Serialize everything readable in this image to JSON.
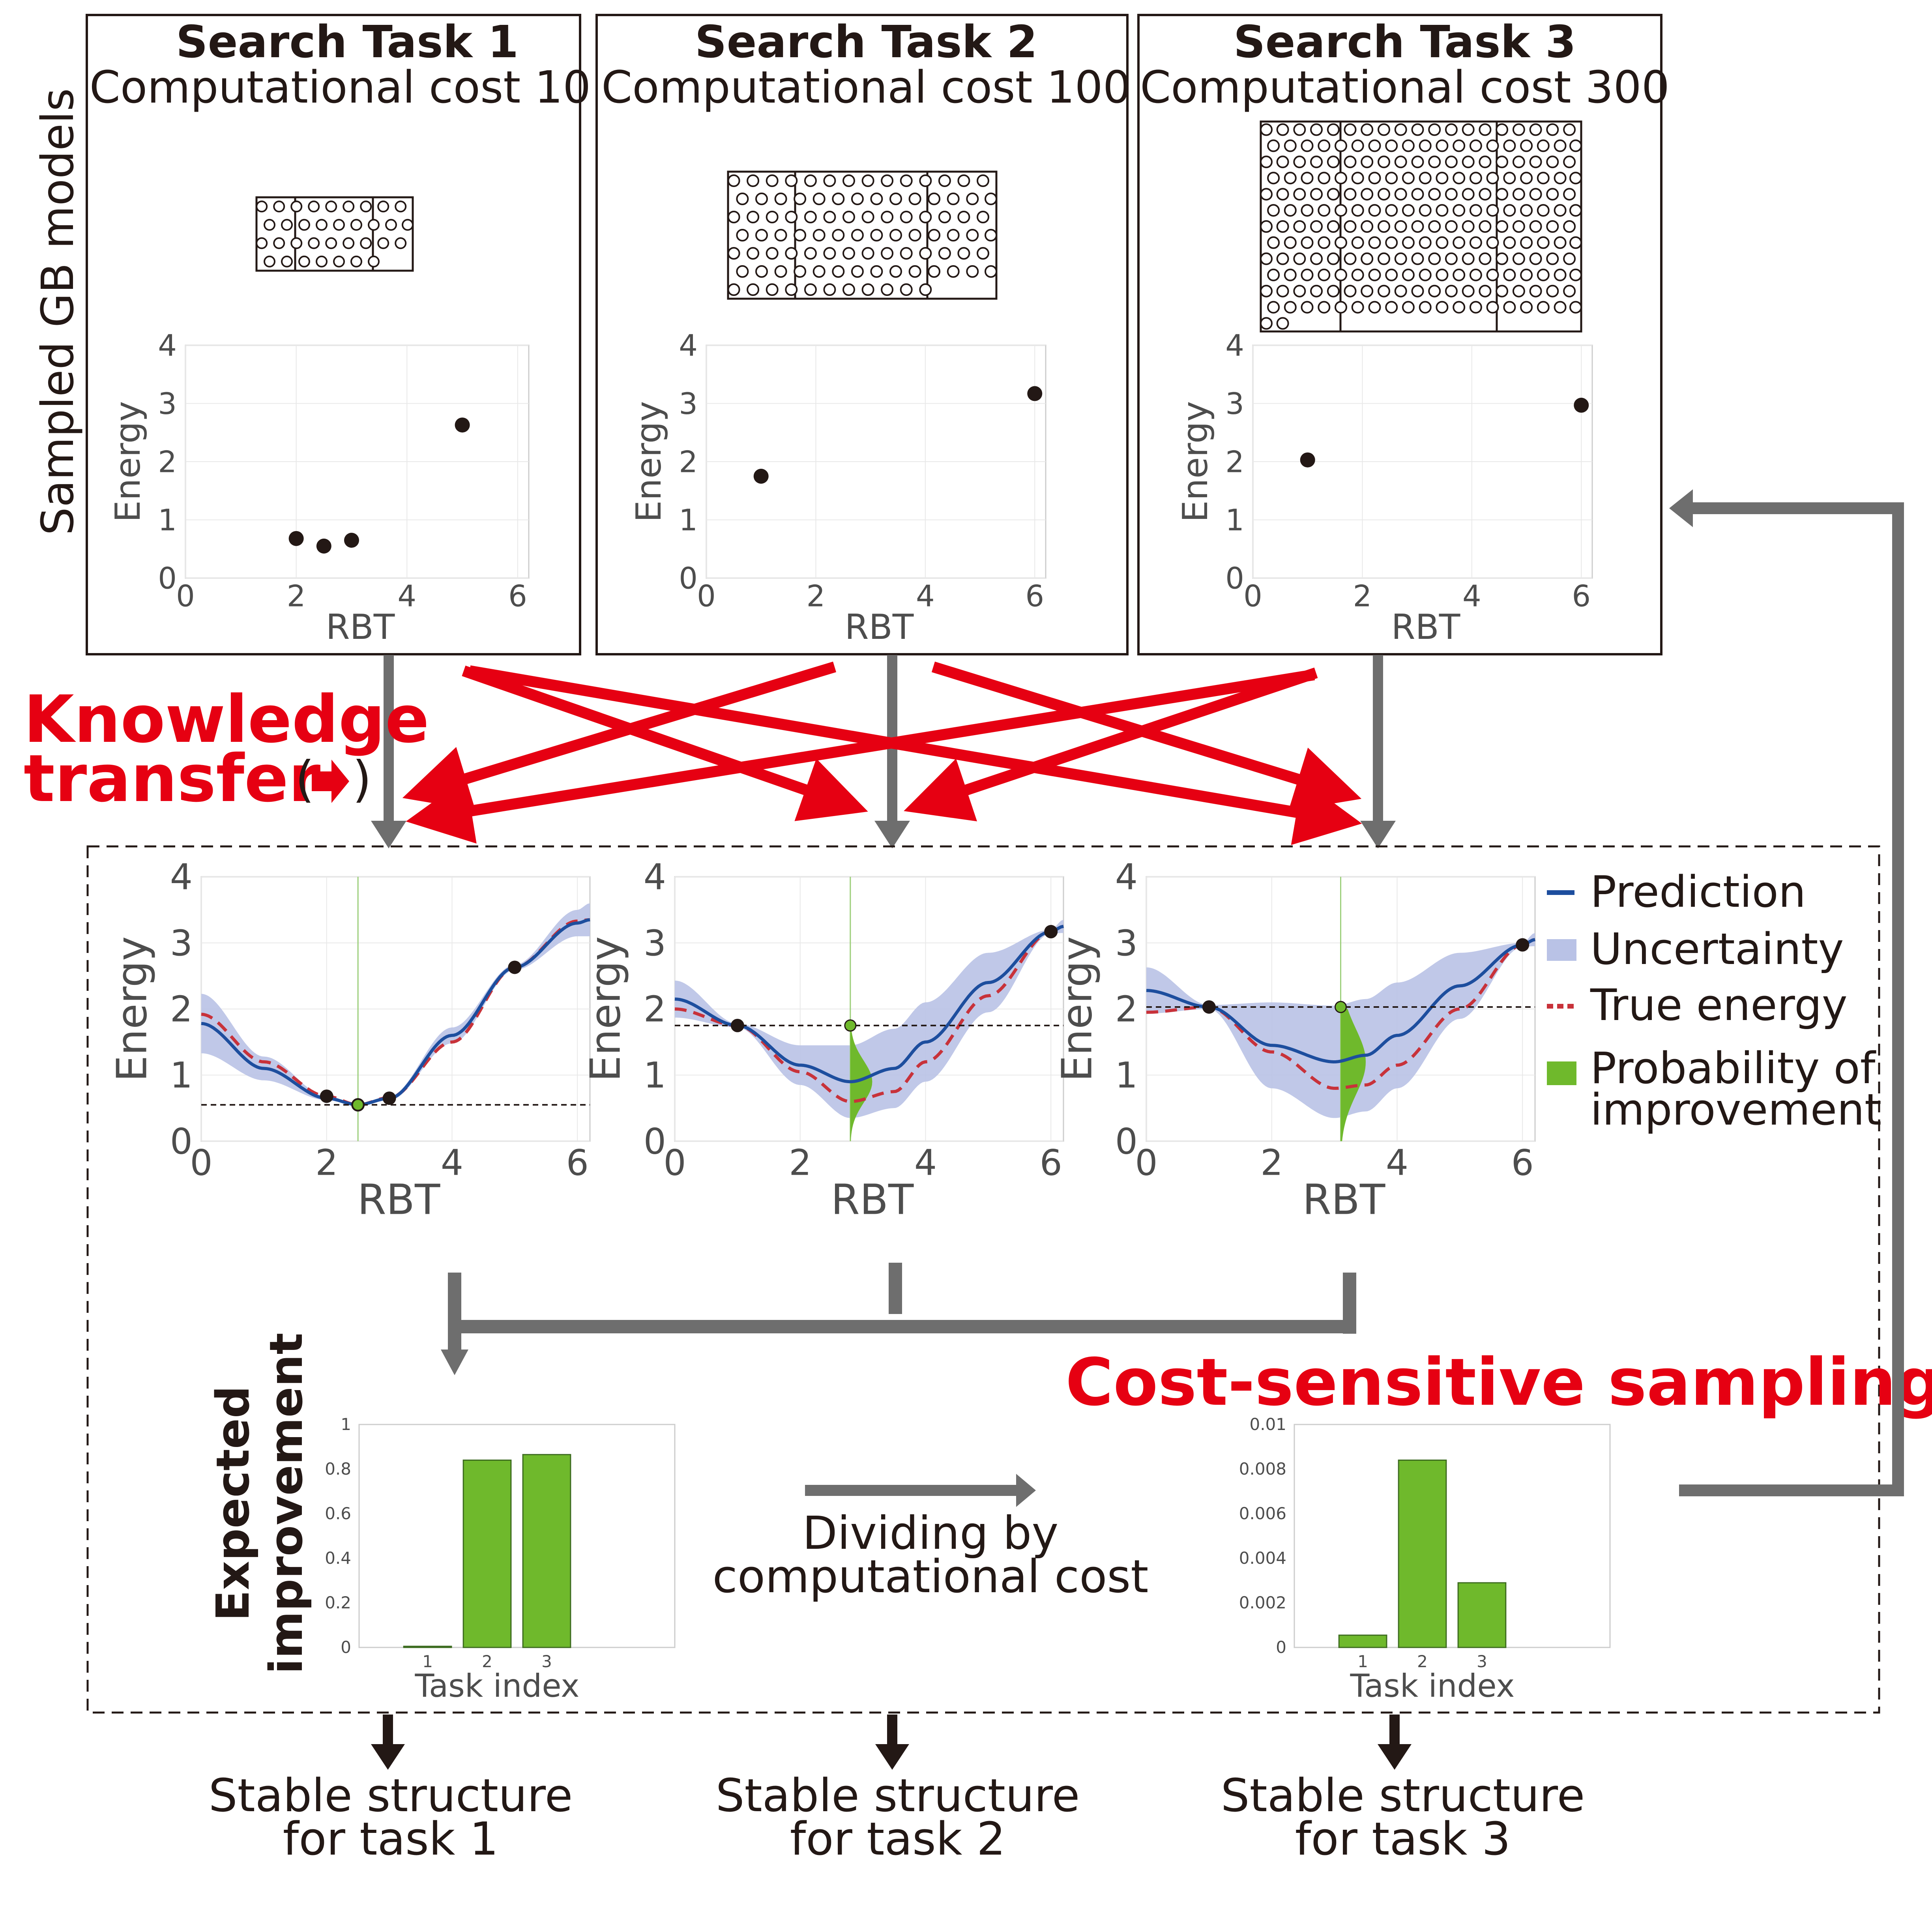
{
  "side_label": "Sampled GB models",
  "tasks": [
    {
      "title": "Search Task 1",
      "cost_label": "Computational cost 10"
    },
    {
      "title": "Search Task 2",
      "cost_label": "Computational cost 100"
    },
    {
      "title": "Search Task 3",
      "cost_label": "Computational cost 300"
    }
  ],
  "knowledge_transfer": {
    "line1": "Knowledge",
    "line2": "transfer",
    "paren_open": "(",
    "paren_close": ")"
  },
  "legend": {
    "prediction": "Prediction",
    "uncertainty": "Uncertainty",
    "true_energy": "True energy",
    "poi_line1": "Probability of",
    "poi_line2": "improvement"
  },
  "cost_sensitive_label": "Cost-sensitive sampling",
  "dividing": {
    "line1": "Dividing by",
    "line2": "computational cost"
  },
  "ei_ylabel": {
    "line1": "Expected",
    "line2": "improvement"
  },
  "outputs": [
    {
      "line1": "Stable structure",
      "line2": "for task 1"
    },
    {
      "line1": "Stable structure",
      "line2": "for task 2"
    },
    {
      "line1": "Stable structure",
      "line2": "for task 3"
    }
  ],
  "colors": {
    "red": "#e60012",
    "green": "#6fb92c",
    "prediction": "#1d4e9e",
    "uncertainty": "#b9c2e6",
    "true_energy": "#c8323a",
    "arrow_gray": "#6e6e6e",
    "dot": "#231815"
  },
  "chart_data": [
    {
      "type": "scatter",
      "xlabel": "RBT",
      "ylabel": "Energy",
      "xlim": [
        0,
        6.2
      ],
      "ylim": [
        0,
        4
      ],
      "xticks": [
        "0",
        "2",
        "4",
        "6"
      ],
      "yticks": [
        "0",
        "1",
        "2",
        "3",
        "4"
      ],
      "points": [
        [
          2.0,
          0.68
        ],
        [
          2.5,
          0.55
        ],
        [
          3.0,
          0.65
        ],
        [
          5.0,
          2.63
        ]
      ]
    },
    {
      "type": "scatter",
      "xlabel": "RBT",
      "ylabel": "Energy",
      "xlim": [
        0,
        6.2
      ],
      "ylim": [
        0,
        4
      ],
      "xticks": [
        "0",
        "2",
        "4",
        "6"
      ],
      "yticks": [
        "0",
        "1",
        "2",
        "3",
        "4"
      ],
      "points": [
        [
          1.0,
          1.75
        ],
        [
          6.0,
          3.17
        ]
      ]
    },
    {
      "type": "scatter",
      "xlabel": "RBT",
      "ylabel": "Energy",
      "xlim": [
        0,
        6.2
      ],
      "ylim": [
        0,
        4
      ],
      "xticks": [
        "0",
        "2",
        "4",
        "6"
      ],
      "yticks": [
        "0",
        "1",
        "2",
        "3",
        "4"
      ],
      "points": [
        [
          1.0,
          2.03
        ],
        [
          6.0,
          2.97
        ]
      ]
    },
    {
      "type": "line",
      "xlabel": "RBT",
      "ylabel": "Energy",
      "xlim": [
        0,
        6.2
      ],
      "ylim": [
        0,
        4
      ],
      "xticks": [
        "0",
        "2",
        "4",
        "6"
      ],
      "yticks": [
        "0",
        "1",
        "2",
        "3",
        "4"
      ],
      "best": 0.55,
      "candidate_x": 2.5,
      "prediction": [
        [
          0,
          1.78
        ],
        [
          1,
          1.1
        ],
        [
          2,
          0.65
        ],
        [
          2.5,
          0.55
        ],
        [
          3,
          0.65
        ],
        [
          4,
          1.6
        ],
        [
          5,
          2.63
        ],
        [
          6,
          3.3
        ],
        [
          6.2,
          3.35
        ]
      ],
      "uncertainty": [
        [
          0,
          0.45
        ],
        [
          1,
          0.18
        ],
        [
          2,
          0.03
        ],
        [
          2.5,
          0.02
        ],
        [
          3,
          0.03
        ],
        [
          4,
          0.12
        ],
        [
          5,
          0.04
        ],
        [
          6,
          0.2
        ],
        [
          6.2,
          0.25
        ]
      ],
      "true_energy": [
        [
          0,
          1.92
        ],
        [
          1,
          1.2
        ],
        [
          2,
          0.68
        ],
        [
          2.5,
          0.55
        ],
        [
          3,
          0.66
        ],
        [
          4,
          1.5
        ],
        [
          5,
          2.63
        ],
        [
          6,
          3.33
        ],
        [
          6.2,
          3.35
        ]
      ],
      "points": [
        [
          2.0,
          0.68
        ],
        [
          2.5,
          0.55
        ],
        [
          3.0,
          0.65
        ],
        [
          5.0,
          2.63
        ]
      ],
      "poi": {
        "x": 2.5,
        "center": 0.55,
        "sigma": 0.02,
        "height": 0.1
      }
    },
    {
      "type": "line",
      "xlabel": "RBT",
      "ylabel": "Energy",
      "xlim": [
        0,
        6.2
      ],
      "ylim": [
        0,
        4
      ],
      "xticks": [
        "0",
        "2",
        "4",
        "6"
      ],
      "yticks": [
        "0",
        "1",
        "2",
        "3",
        "4"
      ],
      "best": 1.75,
      "candidate_x": 2.8,
      "prediction": [
        [
          0,
          2.15
        ],
        [
          1,
          1.75
        ],
        [
          2,
          1.15
        ],
        [
          2.8,
          0.9
        ],
        [
          3.5,
          1.1
        ],
        [
          4,
          1.5
        ],
        [
          5,
          2.4
        ],
        [
          6,
          3.17
        ],
        [
          6.2,
          3.25
        ]
      ],
      "uncertainty": [
        [
          0,
          0.28
        ],
        [
          1,
          0.03
        ],
        [
          2,
          0.3
        ],
        [
          2.8,
          0.55
        ],
        [
          3.5,
          0.6
        ],
        [
          4,
          0.6
        ],
        [
          5,
          0.45
        ],
        [
          6,
          0.03
        ],
        [
          6.2,
          0.1
        ]
      ],
      "true_energy": [
        [
          0,
          2.0
        ],
        [
          1,
          1.75
        ],
        [
          2,
          1.05
        ],
        [
          2.8,
          0.6
        ],
        [
          3.5,
          0.75
        ],
        [
          4,
          1.2
        ],
        [
          5,
          2.2
        ],
        [
          6,
          3.17
        ],
        [
          6.2,
          3.25
        ]
      ],
      "points": [
        [
          1.0,
          1.75
        ],
        [
          6.0,
          3.17
        ]
      ],
      "poi": {
        "x": 2.8,
        "center": 0.9,
        "sigma": 0.32,
        "height": 0.35
      }
    },
    {
      "type": "line",
      "xlabel": "RBT",
      "ylabel": "Energy",
      "xlim": [
        0,
        6.2
      ],
      "ylim": [
        0,
        4
      ],
      "xticks": [
        "0",
        "2",
        "4",
        "6"
      ],
      "yticks": [
        "0",
        "1",
        "2",
        "3",
        "4"
      ],
      "best": 2.03,
      "candidate_x": 3.1,
      "prediction": [
        [
          0,
          2.28
        ],
        [
          1,
          2.03
        ],
        [
          2,
          1.45
        ],
        [
          3,
          1.2
        ],
        [
          3.5,
          1.3
        ],
        [
          4,
          1.6
        ],
        [
          5,
          2.35
        ],
        [
          6,
          2.97
        ],
        [
          6.2,
          3.05
        ]
      ],
      "uncertainty": [
        [
          0,
          0.35
        ],
        [
          1,
          0.03
        ],
        [
          2,
          0.65
        ],
        [
          3,
          0.85
        ],
        [
          3.5,
          0.85
        ],
        [
          4,
          0.8
        ],
        [
          5,
          0.5
        ],
        [
          6,
          0.03
        ],
        [
          6.2,
          0.1
        ]
      ],
      "true_energy": [
        [
          0,
          1.95
        ],
        [
          1,
          2.03
        ],
        [
          2,
          1.35
        ],
        [
          3,
          0.8
        ],
        [
          3.5,
          0.85
        ],
        [
          4,
          1.15
        ],
        [
          5,
          2.0
        ],
        [
          6,
          2.97
        ],
        [
          6.2,
          3.05
        ]
      ],
      "points": [
        [
          1.0,
          2.03
        ],
        [
          6.0,
          2.97
        ]
      ],
      "poi": {
        "x": 3.1,
        "center": 1.2,
        "sigma": 0.5,
        "height": 0.4
      }
    },
    {
      "type": "bar",
      "xlabel": "Task index",
      "ylabel": "",
      "categories": [
        "1",
        "2",
        "3"
      ],
      "values": [
        0.005,
        0.84,
        0.865
      ],
      "ylim": [
        0,
        1
      ],
      "yticks": [
        "0",
        "0.2",
        "0.4",
        "0.6",
        "0.8",
        "1"
      ]
    },
    {
      "type": "bar",
      "xlabel": "Task index",
      "ylabel": "",
      "categories": [
        "1",
        "2",
        "3"
      ],
      "values": [
        0.00055,
        0.0084,
        0.0029
      ],
      "ylim": [
        0,
        0.01
      ],
      "yticks": [
        "0",
        "0.002",
        "0.004",
        "0.006",
        "0.008",
        "0.01"
      ]
    }
  ]
}
